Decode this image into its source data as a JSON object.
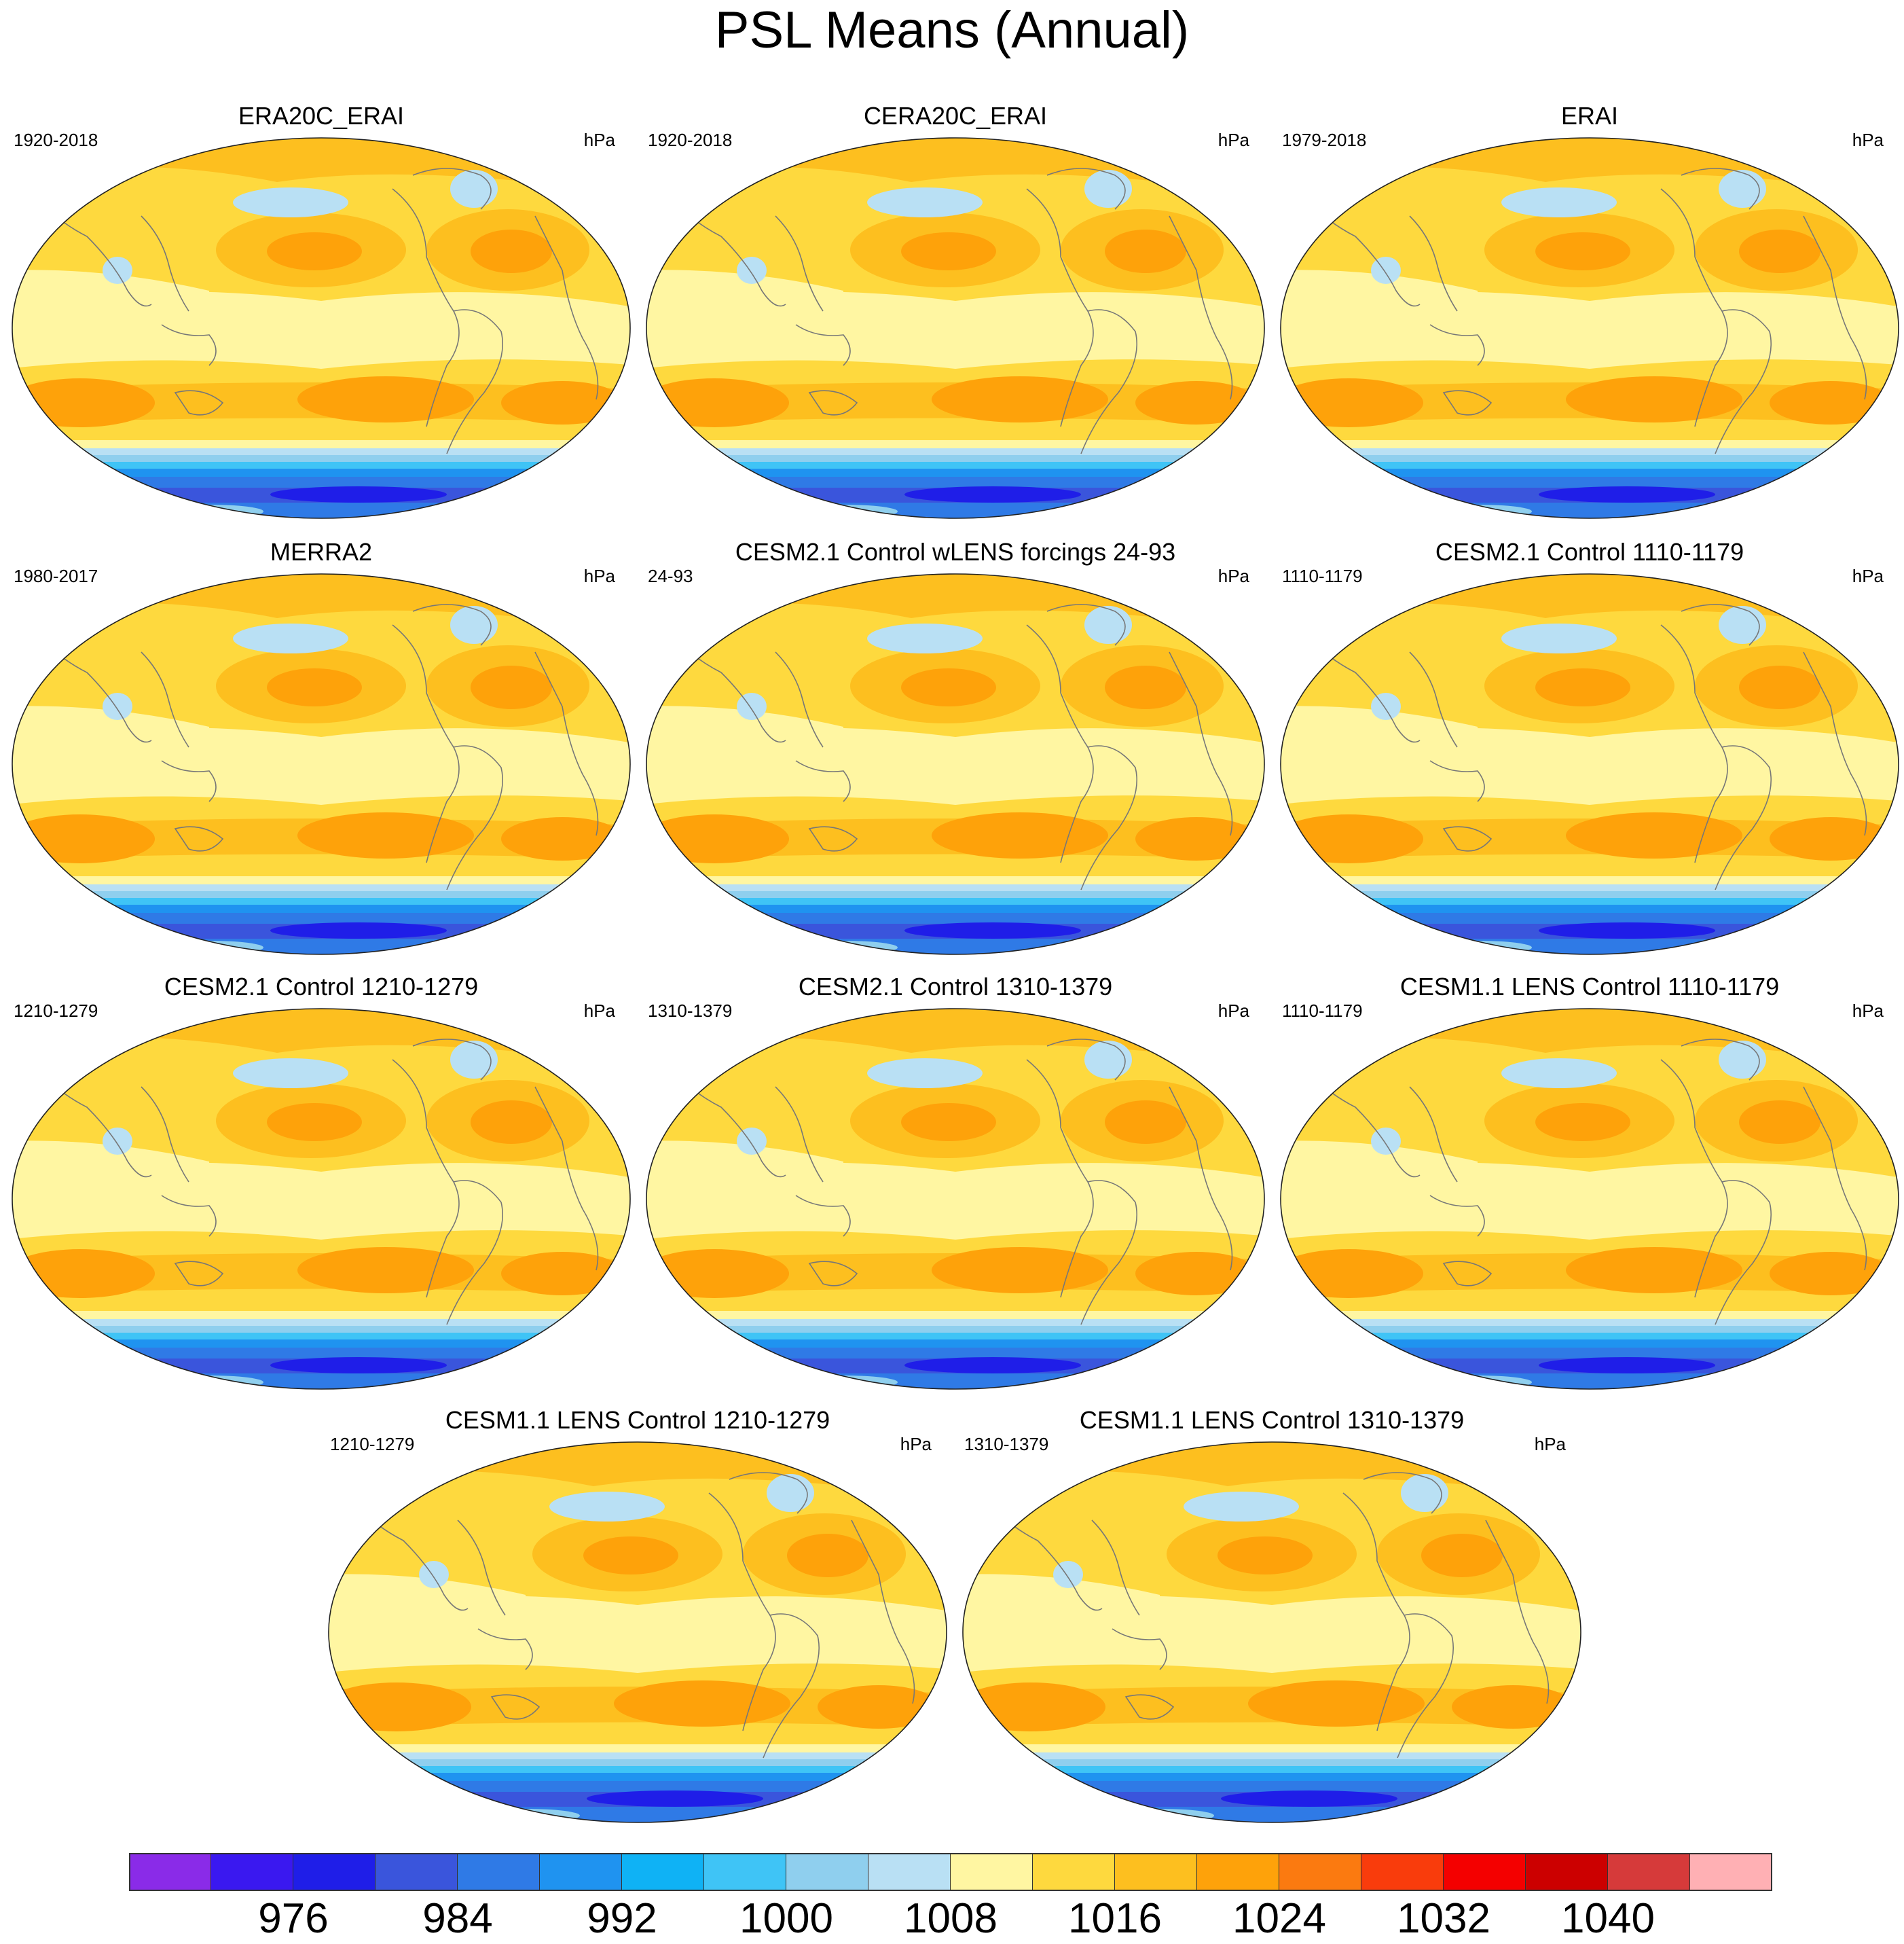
{
  "title": "PSL Means (Annual)",
  "panels": [
    {
      "title": "ERA20C_ERAI",
      "left_label": "1920-2018",
      "right_label": "hPa"
    },
    {
      "title": "CERA20C_ERAI",
      "left_label": "1920-2018",
      "right_label": "hPa"
    },
    {
      "title": "ERAI",
      "left_label": "1979-2018",
      "right_label": "hPa"
    },
    {
      "title": "MERRA2",
      "left_label": "1980-2017",
      "right_label": "hPa"
    },
    {
      "title": "CESM2.1 Control wLENS forcings 24-93",
      "left_label": "24-93",
      "right_label": "hPa"
    },
    {
      "title": "CESM2.1 Control 1110-1179",
      "left_label": "1110-1179",
      "right_label": "hPa"
    },
    {
      "title": "CESM2.1 Control 1210-1279",
      "left_label": "1210-1279",
      "right_label": "hPa"
    },
    {
      "title": "CESM2.1 Control 1310-1379",
      "left_label": "1310-1379",
      "right_label": "hPa"
    },
    {
      "title": "CESM1.1 LENS Control 1110-1179",
      "left_label": "1110-1179",
      "right_label": "hPa"
    },
    {
      "title": "CESM1.1 LENS Control 1210-1279",
      "left_label": "1210-1279",
      "right_label": "hPa"
    },
    {
      "title": "CESM1.1 LENS Control 1310-1379",
      "left_label": "1310-1379",
      "right_label": "hPa"
    }
  ],
  "colorbar": {
    "colors": [
      "#8a2be8",
      "#3a18f0",
      "#1f1ee8",
      "#3a55dc",
      "#2f7ae6",
      "#1f93f0",
      "#0fb2f5",
      "#3fc4f6",
      "#8fcfee",
      "#b9e0f4",
      "#fff6a2",
      "#fed93e",
      "#fdbf1f",
      "#fea20a",
      "#fb7a10",
      "#f93c0c",
      "#f40000",
      "#cc0000",
      "#d63a3a",
      "#ffb0b4"
    ],
    "labels": [
      "976",
      "984",
      "992",
      "1000",
      "1008",
      "1016",
      "1024",
      "1032",
      "1040"
    ]
  }
}
